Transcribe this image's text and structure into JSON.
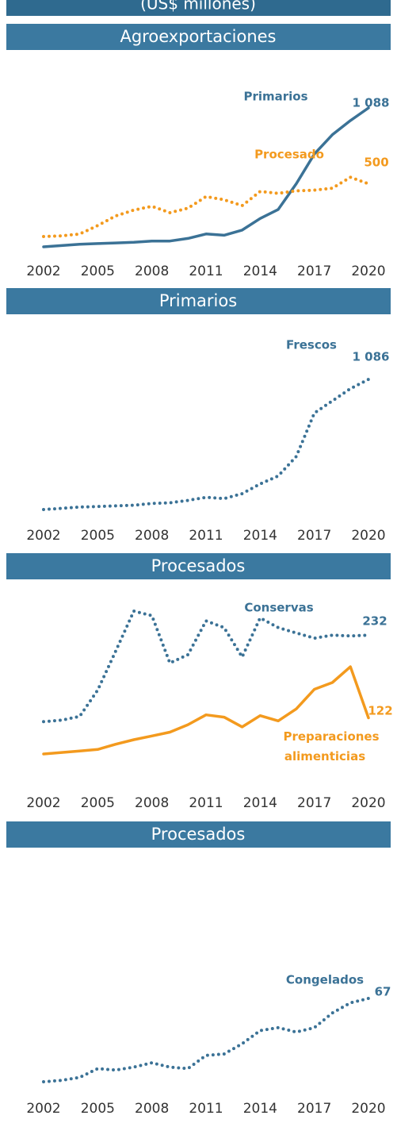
{
  "header": "(US$ millones)",
  "chart_data": [
    {
      "type": "line",
      "title": "Agroexportaciones",
      "x": [
        2002,
        2003,
        2004,
        2005,
        2006,
        2007,
        2008,
        2009,
        2010,
        2011,
        2012,
        2013,
        2014,
        2015,
        2016,
        2017,
        2018,
        2019,
        2020
      ],
      "xticks": [
        2002,
        2005,
        2008,
        2011,
        2014,
        2017,
        2020
      ],
      "series": [
        {
          "name": "Primarios",
          "color": "#3b7296",
          "line_style": "solid",
          "values": [
            10,
            20,
            30,
            35,
            40,
            45,
            55,
            55,
            75,
            110,
            100,
            140,
            230,
            300,
            500,
            730,
            880,
            990,
            1088
          ],
          "value_labels": [
            null,
            null,
            null,
            null,
            null,
            null,
            null,
            null,
            null,
            null,
            null,
            null,
            null,
            null,
            null,
            null,
            null,
            null,
            "1 088"
          ]
        },
        {
          "name": "Procesado",
          "color": "#f39a1e",
          "line_style": "dotted",
          "values": [
            90,
            95,
            110,
            175,
            250,
            295,
            325,
            275,
            310,
            400,
            375,
            330,
            440,
            425,
            445,
            450,
            465,
            550,
            500
          ]
        }
      ]
    },
    {
      "type": "line",
      "title": "Primarios",
      "x": [
        2002,
        2003,
        2004,
        2005,
        2006,
        2007,
        2008,
        2009,
        2010,
        2011,
        2012,
        2013,
        2014,
        2015,
        2016,
        2017,
        2018,
        2019,
        2020
      ],
      "xticks": [
        2002,
        2005,
        2008,
        2011,
        2014,
        2017,
        2020
      ],
      "series": [
        {
          "name": "Frescos",
          "color": "#3b7296",
          "line_style": "dotted",
          "values": [
            20,
            30,
            40,
            45,
            50,
            55,
            70,
            75,
            95,
            120,
            110,
            150,
            230,
            295,
            455,
            810,
            910,
            1010,
            1086
          ],
          "value_labels": [
            null,
            null,
            null,
            null,
            null,
            null,
            null,
            null,
            null,
            null,
            null,
            null,
            null,
            null,
            null,
            null,
            null,
            null,
            "1 086"
          ]
        }
      ]
    },
    {
      "type": "line",
      "title": "Procesados",
      "x": [
        2002,
        2003,
        2004,
        2005,
        2006,
        2007,
        2008,
        2009,
        2010,
        2011,
        2012,
        2013,
        2014,
        2015,
        2016,
        2017,
        2018,
        2019,
        2020
      ],
      "xticks": [
        2002,
        2005,
        2008,
        2011,
        2014,
        2017,
        2020
      ],
      "series": [
        {
          "name": "Conservas",
          "color": "#3b7296",
          "line_style": "dotted",
          "values": [
            117,
            119,
            124,
            159,
            211,
            264,
            258,
            195,
            206,
            251,
            242,
            203,
            255,
            242,
            235,
            228,
            232,
            231,
            232
          ]
        },
        {
          "name": "Preparaciones alimenticias",
          "color": "#f39a1e",
          "line_style": "solid",
          "values": [
            74,
            76,
            78,
            80,
            87,
            93,
            98,
            103,
            113,
            126,
            123,
            110,
            125,
            118,
            134,
            160,
            169,
            190,
            122
          ]
        }
      ]
    },
    {
      "type": "line",
      "title": "Procesados",
      "x": [
        2002,
        2003,
        2004,
        2005,
        2006,
        2007,
        2008,
        2009,
        2010,
        2011,
        2012,
        2013,
        2014,
        2015,
        2016,
        2017,
        2018,
        2019,
        2020
      ],
      "xticks": [
        2002,
        2005,
        2008,
        2011,
        2014,
        2017,
        2020
      ],
      "series": [
        {
          "name": "Congelados",
          "color": "#3b7296",
          "line_style": "dotted",
          "values": [
            10,
            11,
            13,
            19,
            18,
            20,
            23,
            20,
            19,
            28,
            29,
            36,
            45,
            47,
            44,
            47,
            57,
            64,
            67
          ]
        }
      ]
    }
  ]
}
